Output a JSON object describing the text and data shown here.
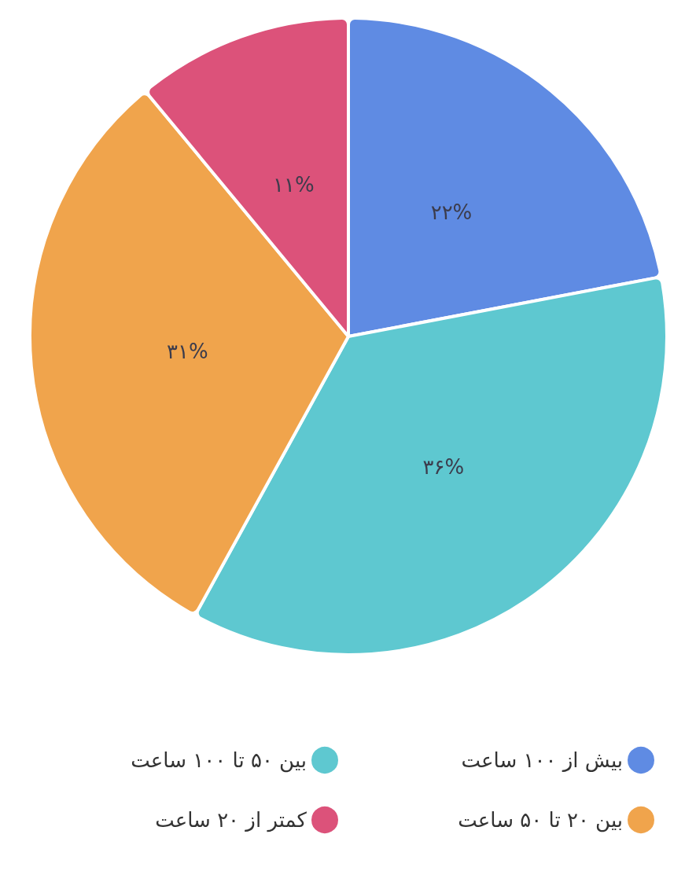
{
  "chart_data": {
    "type": "pie",
    "categories": [
      "بیش از ۱۰۰ ساعت",
      "بین ۵۰ تا ۱۰۰ ساعت",
      "بین ۲۰ تا ۵۰ ساعت",
      "کمتر از ۲۰ ساعت"
    ],
    "values": [
      22,
      36,
      31,
      11
    ],
    "colors": [
      "#5f8be3",
      "#5ec8d0",
      "#f0a44c",
      "#dc527a"
    ],
    "value_labels": [
      "۲۲%",
      "۳۶%",
      "۳۱%",
      "۱۱%"
    ],
    "legend": "bottom"
  }
}
